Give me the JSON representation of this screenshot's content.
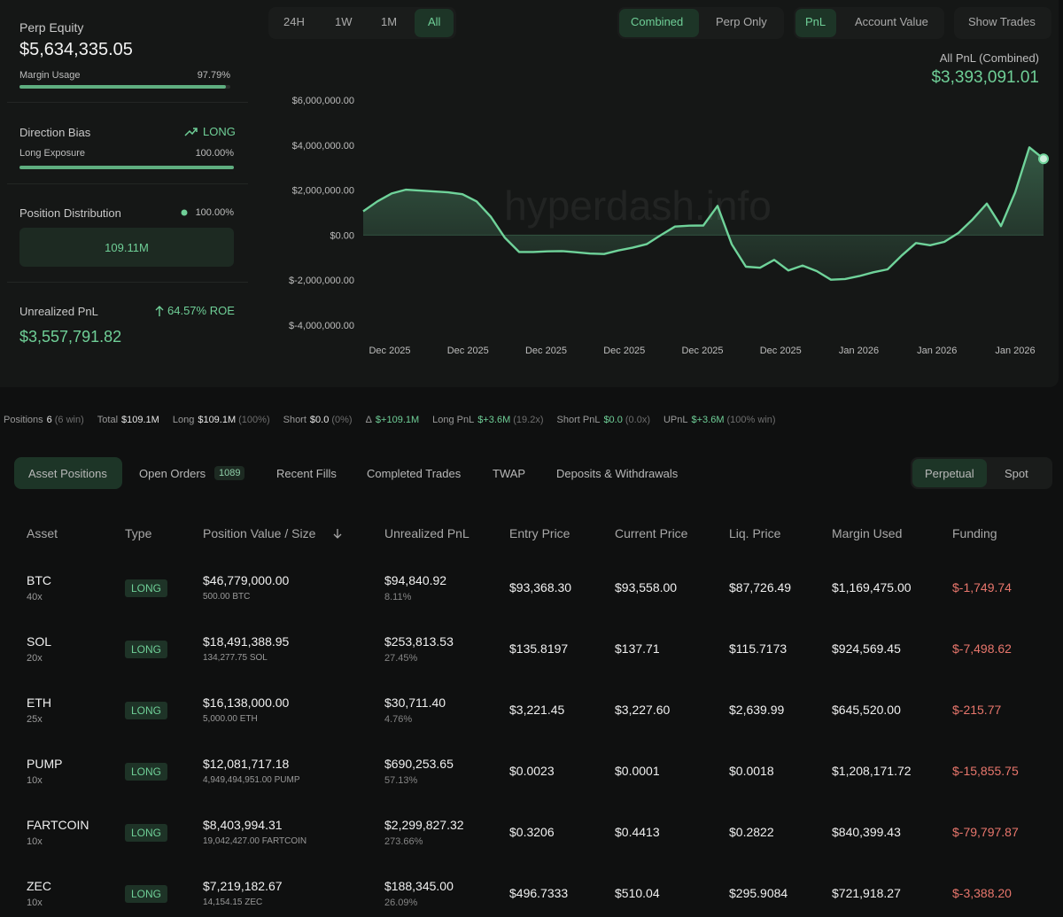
{
  "header": {
    "range_buttons": [
      "24H",
      "1W",
      "1M",
      "All"
    ],
    "view_buttons": [
      "Combined",
      "Perp Only"
    ],
    "metric_buttons": [
      "PnL",
      "Account Value"
    ],
    "show_trades": "Show Trades"
  },
  "summary": {
    "perp_equity": {
      "label": "Perp Equity",
      "value": "$5,634,335.05"
    },
    "margin_usage": {
      "label": "Margin Usage",
      "value": 97.79,
      "value_label": "97.79%"
    },
    "direction_bias": {
      "label": "Direction Bias",
      "value": "LONG"
    },
    "long_exposure": {
      "label": "Long Exposure",
      "value": 100,
      "value_label": "100.00%"
    },
    "position_distribution": {
      "label": "Position Distribution",
      "value": "100.00%",
      "total": "109.11M"
    },
    "unrealized_pnl": {
      "label": "Unrealized PnL",
      "roe": "64.57% ROE",
      "value": "$3,557,791.82"
    }
  },
  "chart_data": {
    "type": "line",
    "title": "All PnL (Combined)",
    "headline_value": "$3,393,091.01",
    "watermark": "hyperdash.info",
    "color": "#6fd39a",
    "values": [
      1060000,
      1500000,
      1850000,
      2020000,
      1980000,
      1940000,
      1900000,
      1820000,
      1500000,
      820000,
      -120000,
      -750000,
      -750000,
      -720000,
      -710000,
      -760000,
      -820000,
      -840000,
      -680000,
      -560000,
      -400000,
      0,
      380000,
      420000,
      430000,
      1300000,
      -400000,
      -1400000,
      -1450000,
      -1100000,
      -1570000,
      -1350000,
      -1600000,
      -1980000,
      -1950000,
      -1820000,
      -1650000,
      -1520000,
      -900000,
      -350000,
      -450000,
      -300000,
      100000,
      700000,
      1400000,
      400000,
      1900000,
      3900000,
      3393091.01
    ],
    "xticks": [
      "Dec 2025",
      "Dec 2025",
      "Dec 2025",
      "Dec 2025",
      "Dec 2025",
      "Dec 2025",
      "Jan 2026",
      "Jan 2026",
      "Jan 2026"
    ],
    "ylim": [
      -4000000,
      6000000
    ],
    "yticks": [
      {
        "value": 6000000,
        "label": "$6,000,000.00"
      },
      {
        "value": 4000000,
        "label": "$4,000,000.00"
      },
      {
        "value": 2000000,
        "label": "$2,000,000.00"
      },
      {
        "value": 0,
        "label": "$0.00"
      },
      {
        "value": -2000000,
        "label": "$-2,000,000.00"
      },
      {
        "value": -4000000,
        "label": "$-4,000,000.00"
      }
    ],
    "grid": false
  },
  "stats": [
    {
      "label": "Positions",
      "value": "6",
      "note": "(6 win)"
    },
    {
      "label": "Total",
      "value": "$109.1M"
    },
    {
      "label": "Long",
      "value": "$109.1M",
      "note": "(100%)"
    },
    {
      "label": "Short",
      "value": "$0.0",
      "note": "(0%)"
    },
    {
      "label": "Δ",
      "value": "$+109.1M",
      "color": "#6fcf97"
    },
    {
      "label": "Long PnL",
      "value": "$+3.6M",
      "note": "(19.2x)",
      "color": "#6fcf97"
    },
    {
      "label": "Short PnL",
      "value": "$0.0",
      "note": "(0.0x)",
      "color": "#6fcf97"
    },
    {
      "label": "UPnL",
      "value": "$+3.6M",
      "note": "(100% win)",
      "color": "#6fcf97"
    }
  ],
  "tabs": [
    "Asset Positions",
    "Open Orders",
    "Recent Fills",
    "Completed Trades",
    "TWAP",
    "Deposits & Withdrawals"
  ],
  "open_orders_count": "1089",
  "market_tabs": [
    "Perpetual",
    "Spot"
  ],
  "table": {
    "columns": [
      "Asset",
      "Type",
      "Position Value / Size",
      "Unrealized PnL",
      "Entry Price",
      "Current Price",
      "Liq. Price",
      "Margin Used",
      "Funding"
    ],
    "rows": [
      {
        "asset": "BTC",
        "leverage": "40x",
        "type": "LONG",
        "position_value": "$46,779,000.00",
        "size": "500.00 BTC",
        "unrealized_pnl": "$94,840.92",
        "pnl_pct": "8.11%",
        "entry_price": "$93,368.30",
        "current_price": "$93,558.00",
        "liq_price": "$87,726.49",
        "margin_used": "$1,169,475.00",
        "funding": "$-1,749.74"
      },
      {
        "asset": "SOL",
        "leverage": "20x",
        "type": "LONG",
        "position_value": "$18,491,388.95",
        "size": "134,277.75 SOL",
        "unrealized_pnl": "$253,813.53",
        "pnl_pct": "27.45%",
        "entry_price": "$135.8197",
        "current_price": "$137.71",
        "liq_price": "$115.7173",
        "margin_used": "$924,569.45",
        "funding": "$-7,498.62"
      },
      {
        "asset": "ETH",
        "leverage": "25x",
        "type": "LONG",
        "position_value": "$16,138,000.00",
        "size": "5,000.00 ETH",
        "unrealized_pnl": "$30,711.40",
        "pnl_pct": "4.76%",
        "entry_price": "$3,221.45",
        "current_price": "$3,227.60",
        "liq_price": "$2,639.99",
        "margin_used": "$645,520.00",
        "funding": "$-215.77"
      },
      {
        "asset": "PUMP",
        "leverage": "10x",
        "type": "LONG",
        "position_value": "$12,081,717.18",
        "size": "4,949,494,951.00 PUMP",
        "unrealized_pnl": "$690,253.65",
        "pnl_pct": "57.13%",
        "entry_price": "$0.0023",
        "current_price": "$0.0001",
        "liq_price": "$0.0018",
        "margin_used": "$1,208,171.72",
        "funding": "$-15,855.75"
      },
      {
        "asset": "FARTCOIN",
        "leverage": "10x",
        "type": "LONG",
        "position_value": "$8,403,994.31",
        "size": "19,042,427.00 FARTCOIN",
        "unrealized_pnl": "$2,299,827.32",
        "pnl_pct": "273.66%",
        "entry_price": "$0.3206",
        "current_price": "$0.4413",
        "liq_price": "$0.2822",
        "margin_used": "$840,399.43",
        "funding": "$-79,797.87"
      },
      {
        "asset": "ZEC",
        "leverage": "10x",
        "type": "LONG",
        "position_value": "$7,219,182.67",
        "size": "14,154.15 ZEC",
        "unrealized_pnl": "$188,345.00",
        "pnl_pct": "26.09%",
        "entry_price": "$496.7333",
        "current_price": "$510.04",
        "liq_price": "$295.9084",
        "margin_used": "$721,918.27",
        "funding": "$-3,388.20"
      }
    ]
  }
}
